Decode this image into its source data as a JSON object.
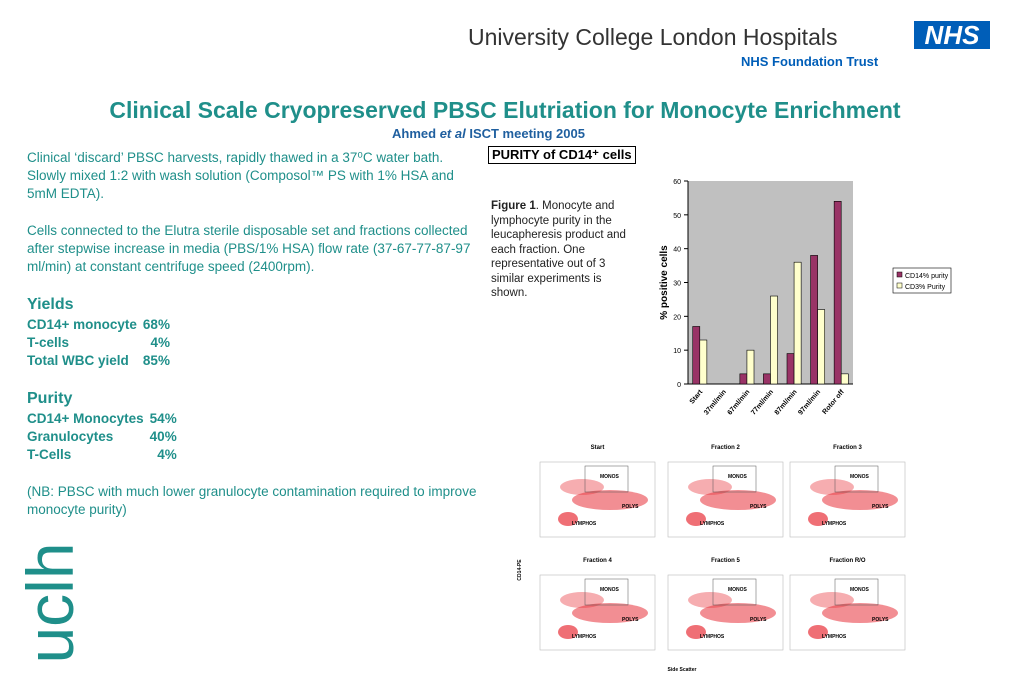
{
  "header": {
    "org": "University College London Hospitals",
    "badge": "NHS",
    "trust": "NHS Foundation Trust",
    "side_logo": "uclh"
  },
  "title": "Clinical Scale Cryopreserved PBSC Elutriation for Monocyte Enrichment",
  "byline": {
    "author": "Ahmed",
    "etal": "et al",
    "meeting": "ISCT meeting 2005"
  },
  "paragraphs": [
    "Clinical ‘discard’ PBSC harvests, rapidly thawed in a 37⁰C water bath. Slowly mixed 1:2 with wash solution (Composol™ PS with 1% HSA and 5mM EDTA).",
    "Cells connected to the Elutra sterile disposable set and fractions collected after stepwise increase in media (PBS/1% HSA) flow rate (37-67-77-87-97 ml/min) at constant centrifuge speed (2400rpm)."
  ],
  "yields": {
    "heading": "Yields",
    "rows": [
      [
        "CD14+ monocyte",
        "68%"
      ],
      [
        "T-cells",
        "4%"
      ],
      [
        "Total WBC yield",
        "85%"
      ]
    ]
  },
  "purity": {
    "heading": "Purity",
    "rows": [
      [
        "CD14+ Monocytes",
        "54%"
      ],
      [
        "Granulocytes",
        "40%"
      ],
      [
        "T-Cells",
        "4%"
      ]
    ]
  },
  "note": "(NB: PBSC with much lower granulocyte contamination required to improve monocyte purity)",
  "figure": {
    "heading": "PURITY of CD14⁺ cells",
    "label": "Figure 1",
    "caption": ". Monocyte and lymphocyte purity in the leucapheresis product and each fraction. One representative out of 3 similar experiments is shown."
  },
  "chart_data": {
    "type": "bar",
    "ylabel": "% positive cells",
    "categories": [
      "Start",
      "37ml/min",
      "67ml/min",
      "77ml/min",
      "87ml/min",
      "97ml/min",
      "Rotor off"
    ],
    "series": [
      {
        "name": "CD14% purity",
        "color": "#993366",
        "values": [
          17,
          0,
          3,
          3,
          9,
          38,
          54
        ]
      },
      {
        "name": "CD3% Purity",
        "color": "#ffffcc",
        "values": [
          13,
          0,
          10,
          26,
          36,
          22,
          3
        ]
      }
    ],
    "ylim": [
      0,
      60
    ],
    "yticks": [
      0,
      10,
      20,
      30,
      40,
      50,
      60
    ]
  },
  "flow": {
    "ylabel": "CD14-PE",
    "xlabel": "Side Scatter",
    "panels": [
      {
        "title": "Start",
        "gates": [
          "MONOS",
          "POLYS",
          "LYMPHOS"
        ]
      },
      {
        "title": "Fraction 2",
        "gates": [
          "MONOS",
          "POLYS",
          "LYMPHOS"
        ]
      },
      {
        "title": "Fraction 3",
        "gates": [
          "MONOS",
          "POLYS",
          "LYMPHOS"
        ]
      },
      {
        "title": "Fraction 4",
        "gates": [
          "MONOS",
          "POLYS",
          "LYMPHOS"
        ]
      },
      {
        "title": "Fraction 5",
        "gates": [
          "MONOS",
          "POLYS",
          "LYMPHOS"
        ]
      },
      {
        "title": "Fraction R/O",
        "gates": [
          "MONOS",
          "POLYS",
          "LYMPHOS"
        ]
      }
    ]
  }
}
